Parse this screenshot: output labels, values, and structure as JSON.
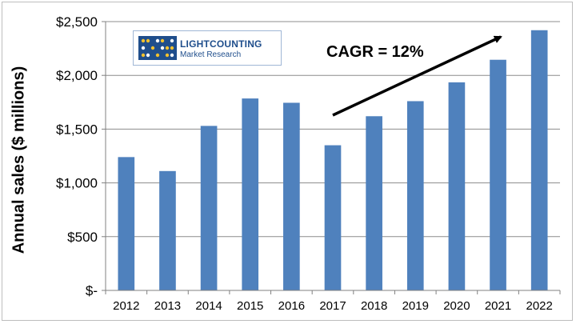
{
  "chart_data": {
    "type": "bar",
    "categories": [
      "2012",
      "2013",
      "2014",
      "2015",
      "2016",
      "2017",
      "2018",
      "2019",
      "2020",
      "2021",
      "2022"
    ],
    "values": [
      1240,
      1110,
      1530,
      1785,
      1745,
      1350,
      1620,
      1760,
      1935,
      2145,
      2420
    ],
    "ylabel": "Annual sales ($ millions)",
    "ylim": [
      0,
      2500
    ],
    "yticks": [
      0,
      500,
      1000,
      1500,
      2000,
      2500
    ],
    "ytick_labels": [
      "$-",
      "$500",
      "$1,000",
      "$1,500",
      "$2,000",
      "$2,500"
    ],
    "bar_color": "#4f81bd",
    "grid": true,
    "annotation": "CAGR = 12%"
  },
  "logo": {
    "name": "LIGHTCOUNTING",
    "subtitle": "Market Research"
  }
}
